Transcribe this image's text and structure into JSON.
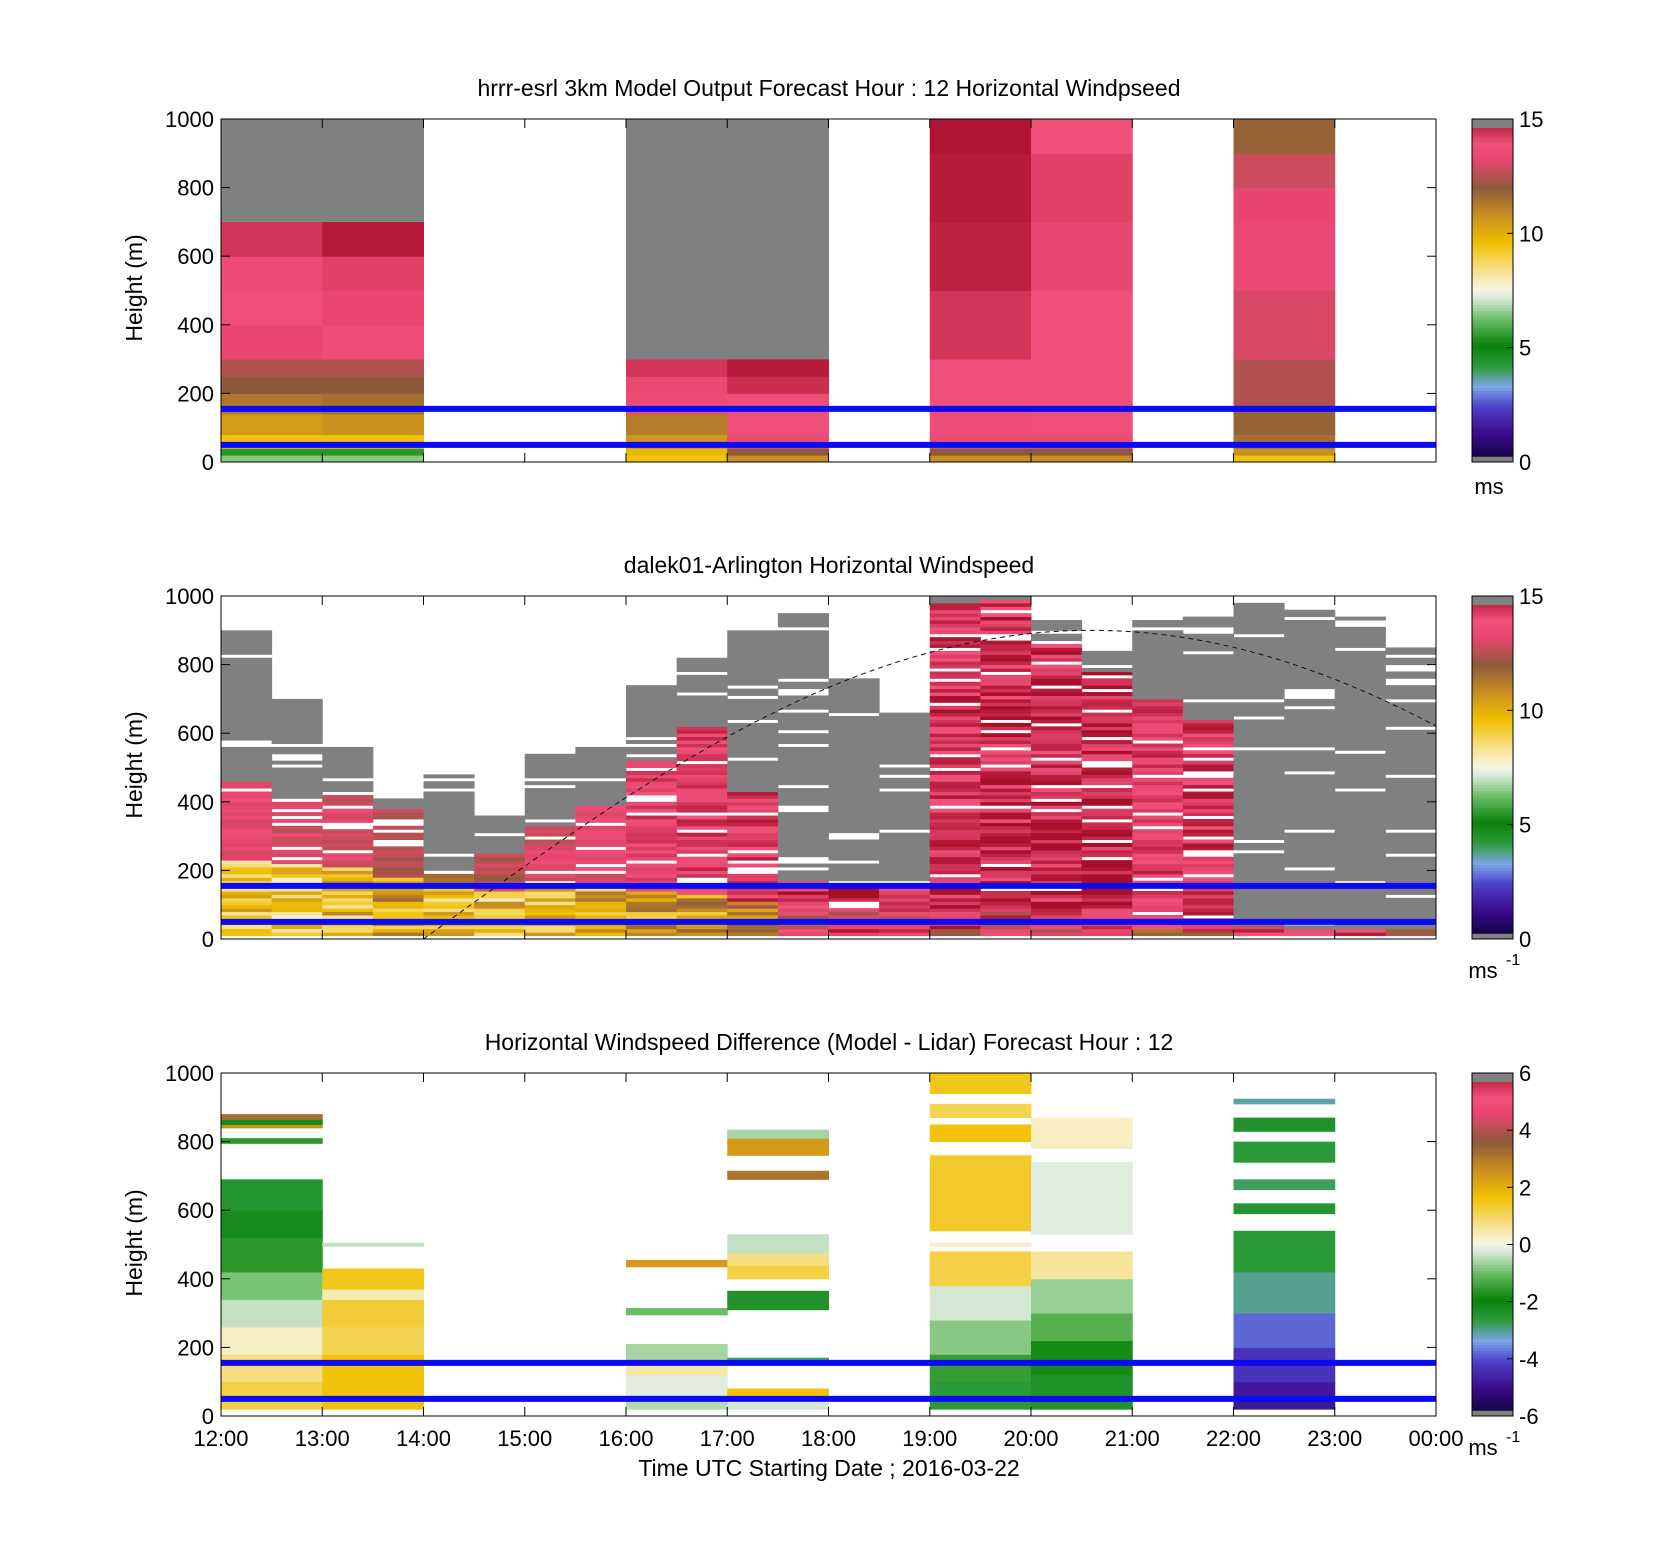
{
  "chart_data": [
    {
      "type": "heatmap",
      "title": "hrrr-esrl 3km Model Output   Forecast Hour : 12 Horizontal Windpseed",
      "ylabel": "Height (m)",
      "xlabel": "",
      "ylim": [
        0,
        1000
      ],
      "yticks": [
        "0",
        "200",
        "400",
        "600",
        "800",
        "1000"
      ],
      "colorbar": {
        "range": [
          0,
          15
        ],
        "ticks": [
          "0",
          "5",
          "10",
          "15"
        ],
        "unit": "ms",
        "unit_sup": ""
      },
      "reference_lines_m": [
        50,
        155
      ],
      "reference_line_color": "#0a0af5",
      "columns": [
        {
          "start_hour": 12,
          "cloud_top_m": 700,
          "levels": [
            [
              0,
              20,
              6.5
            ],
            [
              20,
              40,
              5.5
            ],
            [
              40,
              80,
              9.5
            ],
            [
              80,
              140,
              10.5
            ],
            [
              140,
              200,
              11.3
            ],
            [
              200,
              250,
              12
            ],
            [
              250,
              300,
              12.5
            ],
            [
              300,
              400,
              13.3
            ],
            [
              400,
              500,
              13.8
            ],
            [
              500,
              600,
              13.6
            ],
            [
              600,
              700,
              14.4
            ]
          ]
        },
        {
          "start_hour": 13,
          "cloud_top_m": 700,
          "levels": [
            [
              0,
              20,
              6.5
            ],
            [
              20,
              40,
              5.5
            ],
            [
              40,
              80,
              9.5
            ],
            [
              80,
              140,
              10.7
            ],
            [
              140,
              200,
              11.5
            ],
            [
              200,
              250,
              12
            ],
            [
              250,
              300,
              12.5
            ],
            [
              300,
              400,
              13.7
            ],
            [
              400,
              500,
              13.3
            ],
            [
              500,
              600,
              14.2
            ],
            [
              600,
              700,
              14.8
            ]
          ]
        },
        {
          "start_hour": 16,
          "cloud_top_m": 300,
          "levels": [
            [
              0,
              20,
              9.5
            ],
            [
              20,
              40,
              9.8
            ],
            [
              40,
              80,
              10.6
            ],
            [
              80,
              140,
              11.2
            ],
            [
              140,
              200,
              13.6
            ],
            [
              200,
              250,
              13.4
            ],
            [
              250,
              300,
              14.4
            ]
          ]
        },
        {
          "start_hour": 17,
          "cloud_top_m": 300,
          "levels": [
            [
              0,
              20,
              10.8
            ],
            [
              20,
              40,
              12
            ],
            [
              40,
              80,
              13.5
            ],
            [
              80,
              140,
              13.9
            ],
            [
              140,
              200,
              13.8
            ],
            [
              200,
              250,
              14.5
            ],
            [
              250,
              300,
              14.8
            ]
          ]
        },
        {
          "start_hour": 19,
          "cloud_top_m": null,
          "levels": [
            [
              0,
              20,
              10.8
            ],
            [
              20,
              40,
              12
            ],
            [
              40,
              80,
              13.6
            ],
            [
              80,
              150,
              13.7
            ],
            [
              150,
              300,
              13.9
            ],
            [
              300,
              500,
              14.4
            ],
            [
              500,
              700,
              14.7
            ],
            [
              700,
              900,
              14.8
            ],
            [
              900,
              1000,
              14.9
            ]
          ]
        },
        {
          "start_hour": 20,
          "cloud_top_m": null,
          "levels": [
            [
              0,
              20,
              10.8
            ],
            [
              20,
              40,
              12
            ],
            [
              40,
              80,
              13.4
            ],
            [
              80,
              150,
              13.8
            ],
            [
              150,
              300,
              13.8
            ],
            [
              300,
              500,
              13.9
            ],
            [
              500,
              700,
              14.1
            ],
            [
              700,
              900,
              14.2
            ],
            [
              900,
              1000,
              13.8
            ]
          ]
        },
        {
          "start_hour": 22,
          "cloud_top_m": null,
          "levels": [
            [
              0,
              20,
              9.5
            ],
            [
              20,
              40,
              10.8
            ],
            [
              40,
              80,
              11.5
            ],
            [
              80,
              150,
              11.8
            ],
            [
              150,
              300,
              12.5
            ],
            [
              300,
              500,
              13
            ],
            [
              500,
              700,
              13.4
            ],
            [
              700,
              800,
              13.2
            ],
            [
              800,
              900,
              12.8
            ],
            [
              900,
              1000,
              11.8
            ]
          ]
        }
      ]
    },
    {
      "type": "heatmap",
      "title": "dalek01-Arlington  Horizontal Windspeed",
      "ylabel": "Height (m)",
      "xlabel": "",
      "ylim": [
        0,
        1000
      ],
      "yticks": [
        "0",
        "200",
        "400",
        "600",
        "800",
        "1000"
      ],
      "colorbar": {
        "range": [
          0,
          15
        ],
        "ticks": [
          "0",
          "5",
          "10",
          "15"
        ],
        "unit": "ms",
        "unit_sup": "-1"
      },
      "reference_lines_m": [
        50,
        155
      ],
      "reference_line_color": "#0a0af5",
      "dashed_curve_color": "#111111",
      "profiles": [
        {
          "start_hour": 12.0,
          "low_top_m": 230,
          "mid_top_m": 460,
          "cloud_top_m": 900,
          "low_value": 9.5,
          "mid_value": 13.5
        },
        {
          "start_hour": 12.5,
          "low_top_m": 220,
          "mid_top_m": 410,
          "cloud_top_m": 700,
          "low_value": 9.2,
          "mid_value": 13.2
        },
        {
          "start_hour": 13.0,
          "low_top_m": 210,
          "mid_top_m": 420,
          "cloud_top_m": 560,
          "low_value": 9.6,
          "mid_value": 13.0
        },
        {
          "start_hour": 13.5,
          "low_top_m": 180,
          "mid_top_m": 380,
          "cloud_top_m": 420,
          "low_value": 10.2,
          "mid_value": 12.6
        },
        {
          "start_hour": 14.0,
          "low_top_m": 150,
          "mid_top_m": 200,
          "cloud_top_m": 480,
          "low_value": 9.8,
          "mid_value": 11.5
        },
        {
          "start_hour": 14.5,
          "low_top_m": 140,
          "mid_top_m": 250,
          "cloud_top_m": 360,
          "low_value": 9.5,
          "mid_value": 12.5
        },
        {
          "start_hour": 15.0,
          "low_top_m": 150,
          "mid_top_m": 330,
          "cloud_top_m": 540,
          "low_value": 9.7,
          "mid_value": 13.2
        },
        {
          "start_hour": 15.5,
          "low_top_m": 160,
          "mid_top_m": 390,
          "cloud_top_m": 560,
          "low_value": 10.0,
          "mid_value": 13.4
        },
        {
          "start_hour": 16.0,
          "low_top_m": 140,
          "mid_top_m": 520,
          "cloud_top_m": 740,
          "low_value": 10.3,
          "mid_value": 13.8
        },
        {
          "start_hour": 16.5,
          "low_top_m": 130,
          "mid_top_m": 620,
          "cloud_top_m": 830,
          "low_value": 10.6,
          "mid_value": 14.0
        },
        {
          "start_hour": 17.0,
          "low_top_m": 110,
          "mid_top_m": 430,
          "cloud_top_m": 900,
          "low_value": 11.0,
          "mid_value": 14.2
        },
        {
          "start_hour": 17.5,
          "low_top_m": 90,
          "mid_top_m": 170,
          "cloud_top_m": 950,
          "low_value": 12.8,
          "mid_value": 14.5
        },
        {
          "start_hour": 18.0,
          "low_top_m": 90,
          "mid_top_m": 160,
          "cloud_top_m": 760,
          "low_value": 13.5,
          "mid_value": 14.6
        },
        {
          "start_hour": 18.5,
          "low_top_m": 80,
          "mid_top_m": 170,
          "cloud_top_m": 660,
          "low_value": 13.8,
          "mid_value": 14.5
        },
        {
          "start_hour": 19.0,
          "low_top_m": 80,
          "mid_top_m": 980,
          "cloud_top_m": 1000,
          "low_value": 13.6,
          "mid_value": 14.3
        },
        {
          "start_hour": 19.5,
          "low_top_m": 80,
          "mid_top_m": 990,
          "cloud_top_m": 1000,
          "low_value": 13.8,
          "mid_value": 14.4
        },
        {
          "start_hour": 20.0,
          "low_top_m": 80,
          "mid_top_m": 860,
          "cloud_top_m": 930,
          "low_value": 13.7,
          "mid_value": 14.5
        },
        {
          "start_hour": 20.5,
          "low_top_m": 80,
          "mid_top_m": 780,
          "cloud_top_m": 840,
          "low_value": 13.7,
          "mid_value": 14.6
        },
        {
          "start_hour": 21.0,
          "low_top_m": 60,
          "mid_top_m": 700,
          "cloud_top_m": 930,
          "low_value": 12.8,
          "mid_value": 14.0
        },
        {
          "start_hour": 21.5,
          "low_top_m": 50,
          "mid_top_m": 640,
          "cloud_top_m": 940,
          "low_value": 13.2,
          "mid_value": 14.2
        },
        {
          "start_hour": 22.0,
          "low_top_m": 40,
          "mid_top_m": 0,
          "cloud_top_m": 980,
          "low_value": 13.6,
          "mid_value": 14.0
        },
        {
          "start_hour": 22.5,
          "low_top_m": 30,
          "mid_top_m": 0,
          "cloud_top_m": 960,
          "low_value": 13.4,
          "mid_value": 14.0
        },
        {
          "start_hour": 23.0,
          "low_top_m": 30,
          "mid_top_m": 0,
          "cloud_top_m": 940,
          "low_value": 13.4,
          "mid_value": 14.0
        },
        {
          "start_hour": 23.5,
          "low_top_m": 30,
          "mid_top_m": 0,
          "cloud_top_m": 850,
          "low_value": 13.2,
          "mid_value": 14.0
        }
      ]
    },
    {
      "type": "heatmap",
      "title": "Horizontal Windspeed Difference (Model - Lidar) Forecast Hour : 12",
      "ylabel": "Height (m)",
      "xlabel": "Time UTC  Starting Date ; 2016-03-22",
      "ylim": [
        0,
        1000
      ],
      "yticks": [
        "0",
        "200",
        "400",
        "600",
        "800",
        "1000"
      ],
      "xticks": [
        "12:00",
        "13:00",
        "14:00",
        "15:00",
        "16:00",
        "17:00",
        "18:00",
        "19:00",
        "20:00",
        "21:00",
        "22:00",
        "23:00",
        "00:00"
      ],
      "colorbar": {
        "range": [
          -6,
          6
        ],
        "ticks": [
          "-6",
          "-4",
          "-2",
          "0",
          "2",
          "4",
          "6"
        ],
        "unit": "ms",
        "unit_sup": "-1"
      },
      "reference_lines_m": [
        50,
        155
      ],
      "reference_line_color": "#0a0af5",
      "columns": [
        {
          "start_hour": 12,
          "bands": [
            [
              20,
              100,
              1.2
            ],
            [
              100,
              180,
              0.8
            ],
            [
              180,
              260,
              0.3
            ],
            [
              260,
              340,
              -0.4
            ],
            [
              340,
              420,
              -0.9
            ],
            [
              420,
              520,
              -1.6
            ],
            [
              520,
              600,
              -2.2
            ],
            [
              600,
              690,
              -2.5
            ],
            [
              795,
              810,
              -1.6
            ],
            [
              840,
              850,
              2.6
            ],
            [
              850,
              865,
              -2.2
            ],
            [
              865,
              880,
              3.2
            ]
          ]
        },
        {
          "start_hour": 13,
          "bands": [
            [
              20,
              180,
              1.6
            ],
            [
              180,
              260,
              1.1
            ],
            [
              260,
              340,
              1.3
            ],
            [
              340,
              370,
              0.4
            ],
            [
              370,
              430,
              1.5
            ],
            [
              495,
              505,
              -0.4
            ]
          ]
        },
        {
          "start_hour": 16,
          "bands": [
            [
              20,
              60,
              -0.5
            ],
            [
              60,
              120,
              -0.2
            ],
            [
              120,
              160,
              0.5
            ],
            [
              160,
              210,
              -0.6
            ],
            [
              295,
              315,
              -1.0
            ],
            [
              435,
              455,
              2.4
            ]
          ]
        },
        {
          "start_hour": 17,
          "bands": [
            [
              20,
              40,
              -0.3
            ],
            [
              60,
              80,
              1.6
            ],
            [
              160,
              170,
              -2.8
            ],
            [
              310,
              365,
              -2.4
            ],
            [
              400,
              440,
              1.2
            ],
            [
              440,
              475,
              0.8
            ],
            [
              475,
              530,
              -0.4
            ],
            [
              690,
              715,
              3.1
            ],
            [
              760,
              810,
              2.4
            ],
            [
              810,
              835,
              -0.6
            ]
          ]
        },
        {
          "start_hour": 19,
          "bands": [
            [
              20,
              100,
              -2.6
            ],
            [
              100,
              180,
              -1.5
            ],
            [
              180,
              280,
              -0.8
            ],
            [
              280,
              380,
              -0.3
            ],
            [
              380,
              480,
              1.2
            ],
            [
              495,
              505,
              0.3
            ],
            [
              540,
              760,
              1.4
            ],
            [
              800,
              850,
              1.6
            ],
            [
              870,
              910,
              1.1
            ],
            [
              940,
              1000,
              1.5
            ]
          ]
        },
        {
          "start_hour": 20,
          "bands": [
            [
              20,
              120,
              -2.4
            ],
            [
              120,
              220,
              -1.8
            ],
            [
              220,
              300,
              -1.2
            ],
            [
              300,
              400,
              -0.7
            ],
            [
              400,
              480,
              0.6
            ],
            [
              530,
              740,
              -0.2
            ],
            [
              780,
              870,
              0.3
            ]
          ]
        },
        {
          "start_hour": 22,
          "bands": [
            [
              20,
              100,
              -4.8
            ],
            [
              100,
              200,
              -4.3
            ],
            [
              200,
              300,
              -3.8
            ],
            [
              300,
              420,
              -3.0
            ],
            [
              420,
              540,
              -2.6
            ],
            [
              590,
              620,
              -2.5
            ],
            [
              660,
              690,
              -2.8
            ],
            [
              740,
              800,
              -2.6
            ],
            [
              830,
              870,
              -2.4
            ],
            [
              910,
              925,
              -3.1
            ]
          ]
        }
      ]
    }
  ]
}
